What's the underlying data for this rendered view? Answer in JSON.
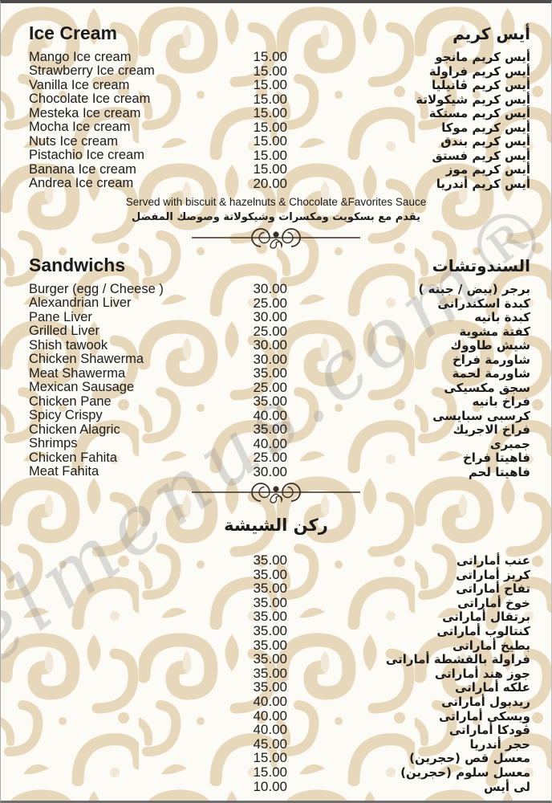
{
  "watermark": "elmenus.com®",
  "colors": {
    "pattern_beige": "#e7d8bb",
    "text": "#1b1b1b"
  },
  "ice_cream": {
    "title_en": "Ice Cream",
    "title_ar": "أيس كريم",
    "items": [
      {
        "en": "Mango Ice cream",
        "price": "15.00",
        "ar": "أيس كريم مانجو"
      },
      {
        "en": "Strawberry Ice cream",
        "price": "15.00",
        "ar": "أيس كريم فراولة"
      },
      {
        "en": "Vanilla Ice cream",
        "price": "15.00",
        "ar": "أيس كريم ڤانيليا"
      },
      {
        "en": "Chocolate Ice cream",
        "price": "15.00",
        "ar": "أيس كريم شيكولاتة"
      },
      {
        "en": "Mesteka Ice cream",
        "price": "15.00",
        "ar": "أيس كريم مستكة"
      },
      {
        "en": "Mocha Ice cream",
        "price": "15.00",
        "ar": "أيس كريم موكا"
      },
      {
        "en": "Nuts Ice cream",
        "price": "15.00",
        "ar": "أيس كريم بندق"
      },
      {
        "en": "Pistachio Ice cream",
        "price": "15.00",
        "ar": "أيس كريم فستق"
      },
      {
        "en": "Banana Ice cream",
        "price": "15.00",
        "ar": "أيس كريم موز"
      },
      {
        "en": "Andrea Ice cream",
        "price": "20.00",
        "ar": "أيس كريم أندريا"
      }
    ],
    "note_en": "Served with biscuit & hazelnuts & Chocolate &Favorites Sauce",
    "note_ar": "يقدم مع بسكويت ومكسرات وشيكولاتة وصوصك المفضل"
  },
  "sandwiches": {
    "title_en": "Sandwichs",
    "title_ar": "السندوتشات",
    "items": [
      {
        "en": "Burger (egg / Cheese )",
        "price": "30.00",
        "ar": "برجر (بيض / جبنه )"
      },
      {
        "en": "Alexandrian Liver",
        "price": "25.00",
        "ar": "كبدة اسكندرانى"
      },
      {
        "en": "Pane Liver",
        "price": "30.00",
        "ar": "كبدة بانيه"
      },
      {
        "en": "Grilled Liver",
        "price": "25.00",
        "ar": "كفتة مشوية"
      },
      {
        "en": "Shish tawook",
        "price": "30.00",
        "ar": "شيش طاووك"
      },
      {
        "en": "Chicken Shawerma",
        "price": "30.00",
        "ar": "شاورمة فراخ"
      },
      {
        "en": "Meat Shawerma",
        "price": "35.00",
        "ar": "شاورمة لحمة"
      },
      {
        "en": "Mexican Sausage",
        "price": "25.00",
        "ar": "سجق مكسيكى"
      },
      {
        "en": "Chicken Pane",
        "price": "35.00",
        "ar": "فراخ بانيه"
      },
      {
        "en": "Spicy Crispy",
        "price": "40.00",
        "ar": "كرسبى سبايسى"
      },
      {
        "en": "Chicken Alagric",
        "price": "35.00",
        "ar": "فراخ الاجريك"
      },
      {
        "en": "Shrimps",
        "price": "40.00",
        "ar": "جمبرى"
      },
      {
        "en": "Chicken Fahita",
        "price": "25.00",
        "ar": "فاهيتا فراخ"
      },
      {
        "en": "Meat Fahita",
        "price": "30.00",
        "ar": "فاهيتا لحم"
      }
    ]
  },
  "shisha": {
    "title_ar": "ركن الشيشة",
    "items": [
      {
        "price": "35.00",
        "ar": "عنب أماراتى"
      },
      {
        "price": "35.00",
        "ar": "كريز أماراتى"
      },
      {
        "price": "35.00",
        "ar": "تفاح أماراتى"
      },
      {
        "price": "35.00",
        "ar": "خوخ أماراتى"
      },
      {
        "price": "35.00",
        "ar": "برتقال أماراتى"
      },
      {
        "price": "35.00",
        "ar": "كنتالوب أماراتى"
      },
      {
        "price": "35.00",
        "ar": "بطيخ أماراتى"
      },
      {
        "price": "35.00",
        "ar": "فراولة بالقشطة أماراتى"
      },
      {
        "price": "35.00",
        "ar": "جوز هند أماراتى"
      },
      {
        "price": "35.00",
        "ar": "علكه أماراتى"
      },
      {
        "price": "40.00",
        "ar": "ريدبول أماراتى"
      },
      {
        "price": "40.00",
        "ar": "ويسكى أماراتى"
      },
      {
        "price": "40.00",
        "ar": "ڤودكا أماراتى"
      },
      {
        "price": "45.00",
        "ar": "حجر أندريا"
      },
      {
        "price": "15.00",
        "ar": "معسل قص (حجرين)"
      },
      {
        "price": "15.00",
        "ar": "معسل سلوم (حجرين)"
      },
      {
        "price": "10.00",
        "ar": "لى أيس"
      }
    ]
  }
}
